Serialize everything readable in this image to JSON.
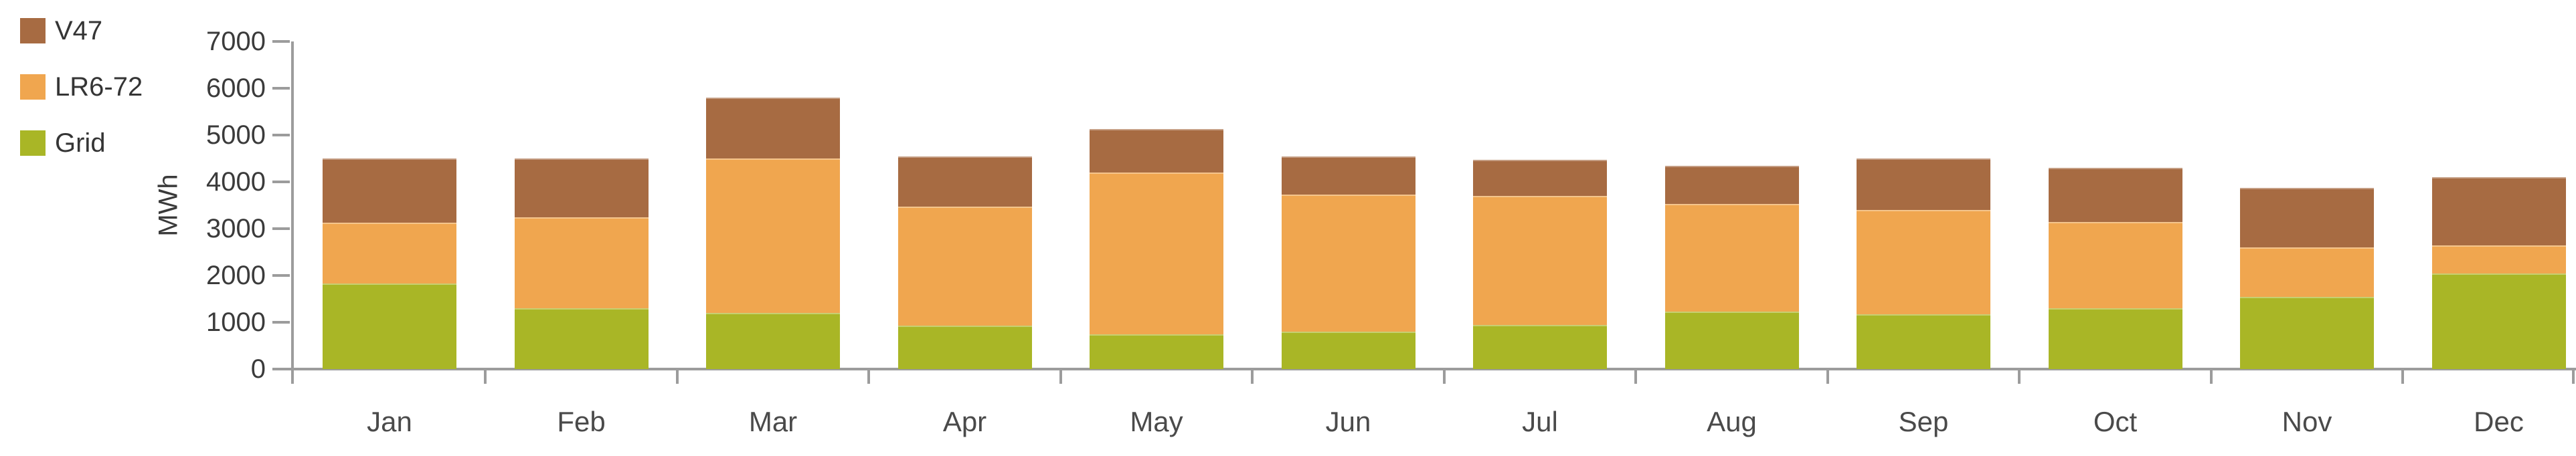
{
  "chart_data": {
    "type": "bar",
    "stacked": true,
    "title": "",
    "categories": [
      "Jan",
      "Feb",
      "Mar",
      "Apr",
      "May",
      "Jun",
      "Jul",
      "Aug",
      "Sep",
      "Oct",
      "Nov",
      "Dec"
    ],
    "series": [
      {
        "name": "Grid",
        "color": "#A9B626",
        "values": [
          1825,
          1300,
          1200,
          925,
          750,
          800,
          950,
          1225,
          1175,
          1300,
          1550,
          2050
        ]
      },
      {
        "name": "LR6-72",
        "color": "#F0A64F",
        "values": [
          1300,
          1950,
          3300,
          2550,
          3450,
          2925,
          2750,
          2300,
          2225,
          1850,
          1050,
          600
        ]
      },
      {
        "name": "V47",
        "color": "#A76B42",
        "values": [
          1375,
          1250,
          1300,
          1075,
          925,
          825,
          775,
          825,
          1100,
          1150,
          1275,
          1450
        ]
      }
    ],
    "xlabel": "",
    "ylabel": "MWh",
    "ylim": [
      0,
      7000
    ],
    "yticks": [
      0,
      1000,
      2000,
      3000,
      4000,
      5000,
      6000,
      7000
    ],
    "grid": false,
    "legend_position": "top-left",
    "legend_order": [
      "V47",
      "LR6-72",
      "Grid"
    ]
  },
  "legend": {
    "items": [
      {
        "label": "V47",
        "color": "#A76B42"
      },
      {
        "label": "LR6-72",
        "color": "#F0A64F"
      },
      {
        "label": "Grid",
        "color": "#A9B626"
      }
    ]
  },
  "colors": {
    "axis": "#9C9C9C",
    "tick_text": "#3B3B3B",
    "month_text": "#4A4A4A",
    "background": "#FFFFFF"
  }
}
